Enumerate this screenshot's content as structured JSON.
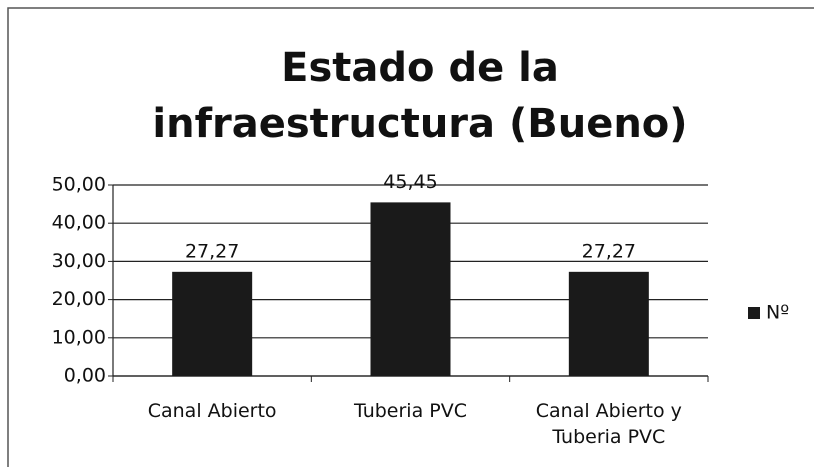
{
  "chart_data": {
    "type": "bar",
    "title": "Estado de la infraestructura (Bueno)",
    "categories": [
      "Canal Abierto",
      "Tuberia PVC",
      "Canal Abierto y Tuberia PVC"
    ],
    "series": [
      {
        "name": "Nº",
        "color": "#1a1a1a",
        "values": [
          27.27,
          45.45,
          27.27
        ],
        "value_labels": [
          "27,27",
          "45,45",
          "27,27"
        ]
      }
    ],
    "ylim": [
      0,
      50
    ],
    "yticks": [
      {
        "value": 0,
        "label": "0,00"
      },
      {
        "value": 10,
        "label": "10,00"
      },
      {
        "value": 20,
        "label": "20,00"
      },
      {
        "value": 30,
        "label": "30,00"
      },
      {
        "value": 40,
        "label": "40,00"
      },
      {
        "value": 50,
        "label": "50,00"
      }
    ],
    "grid": true,
    "legend": "right"
  }
}
